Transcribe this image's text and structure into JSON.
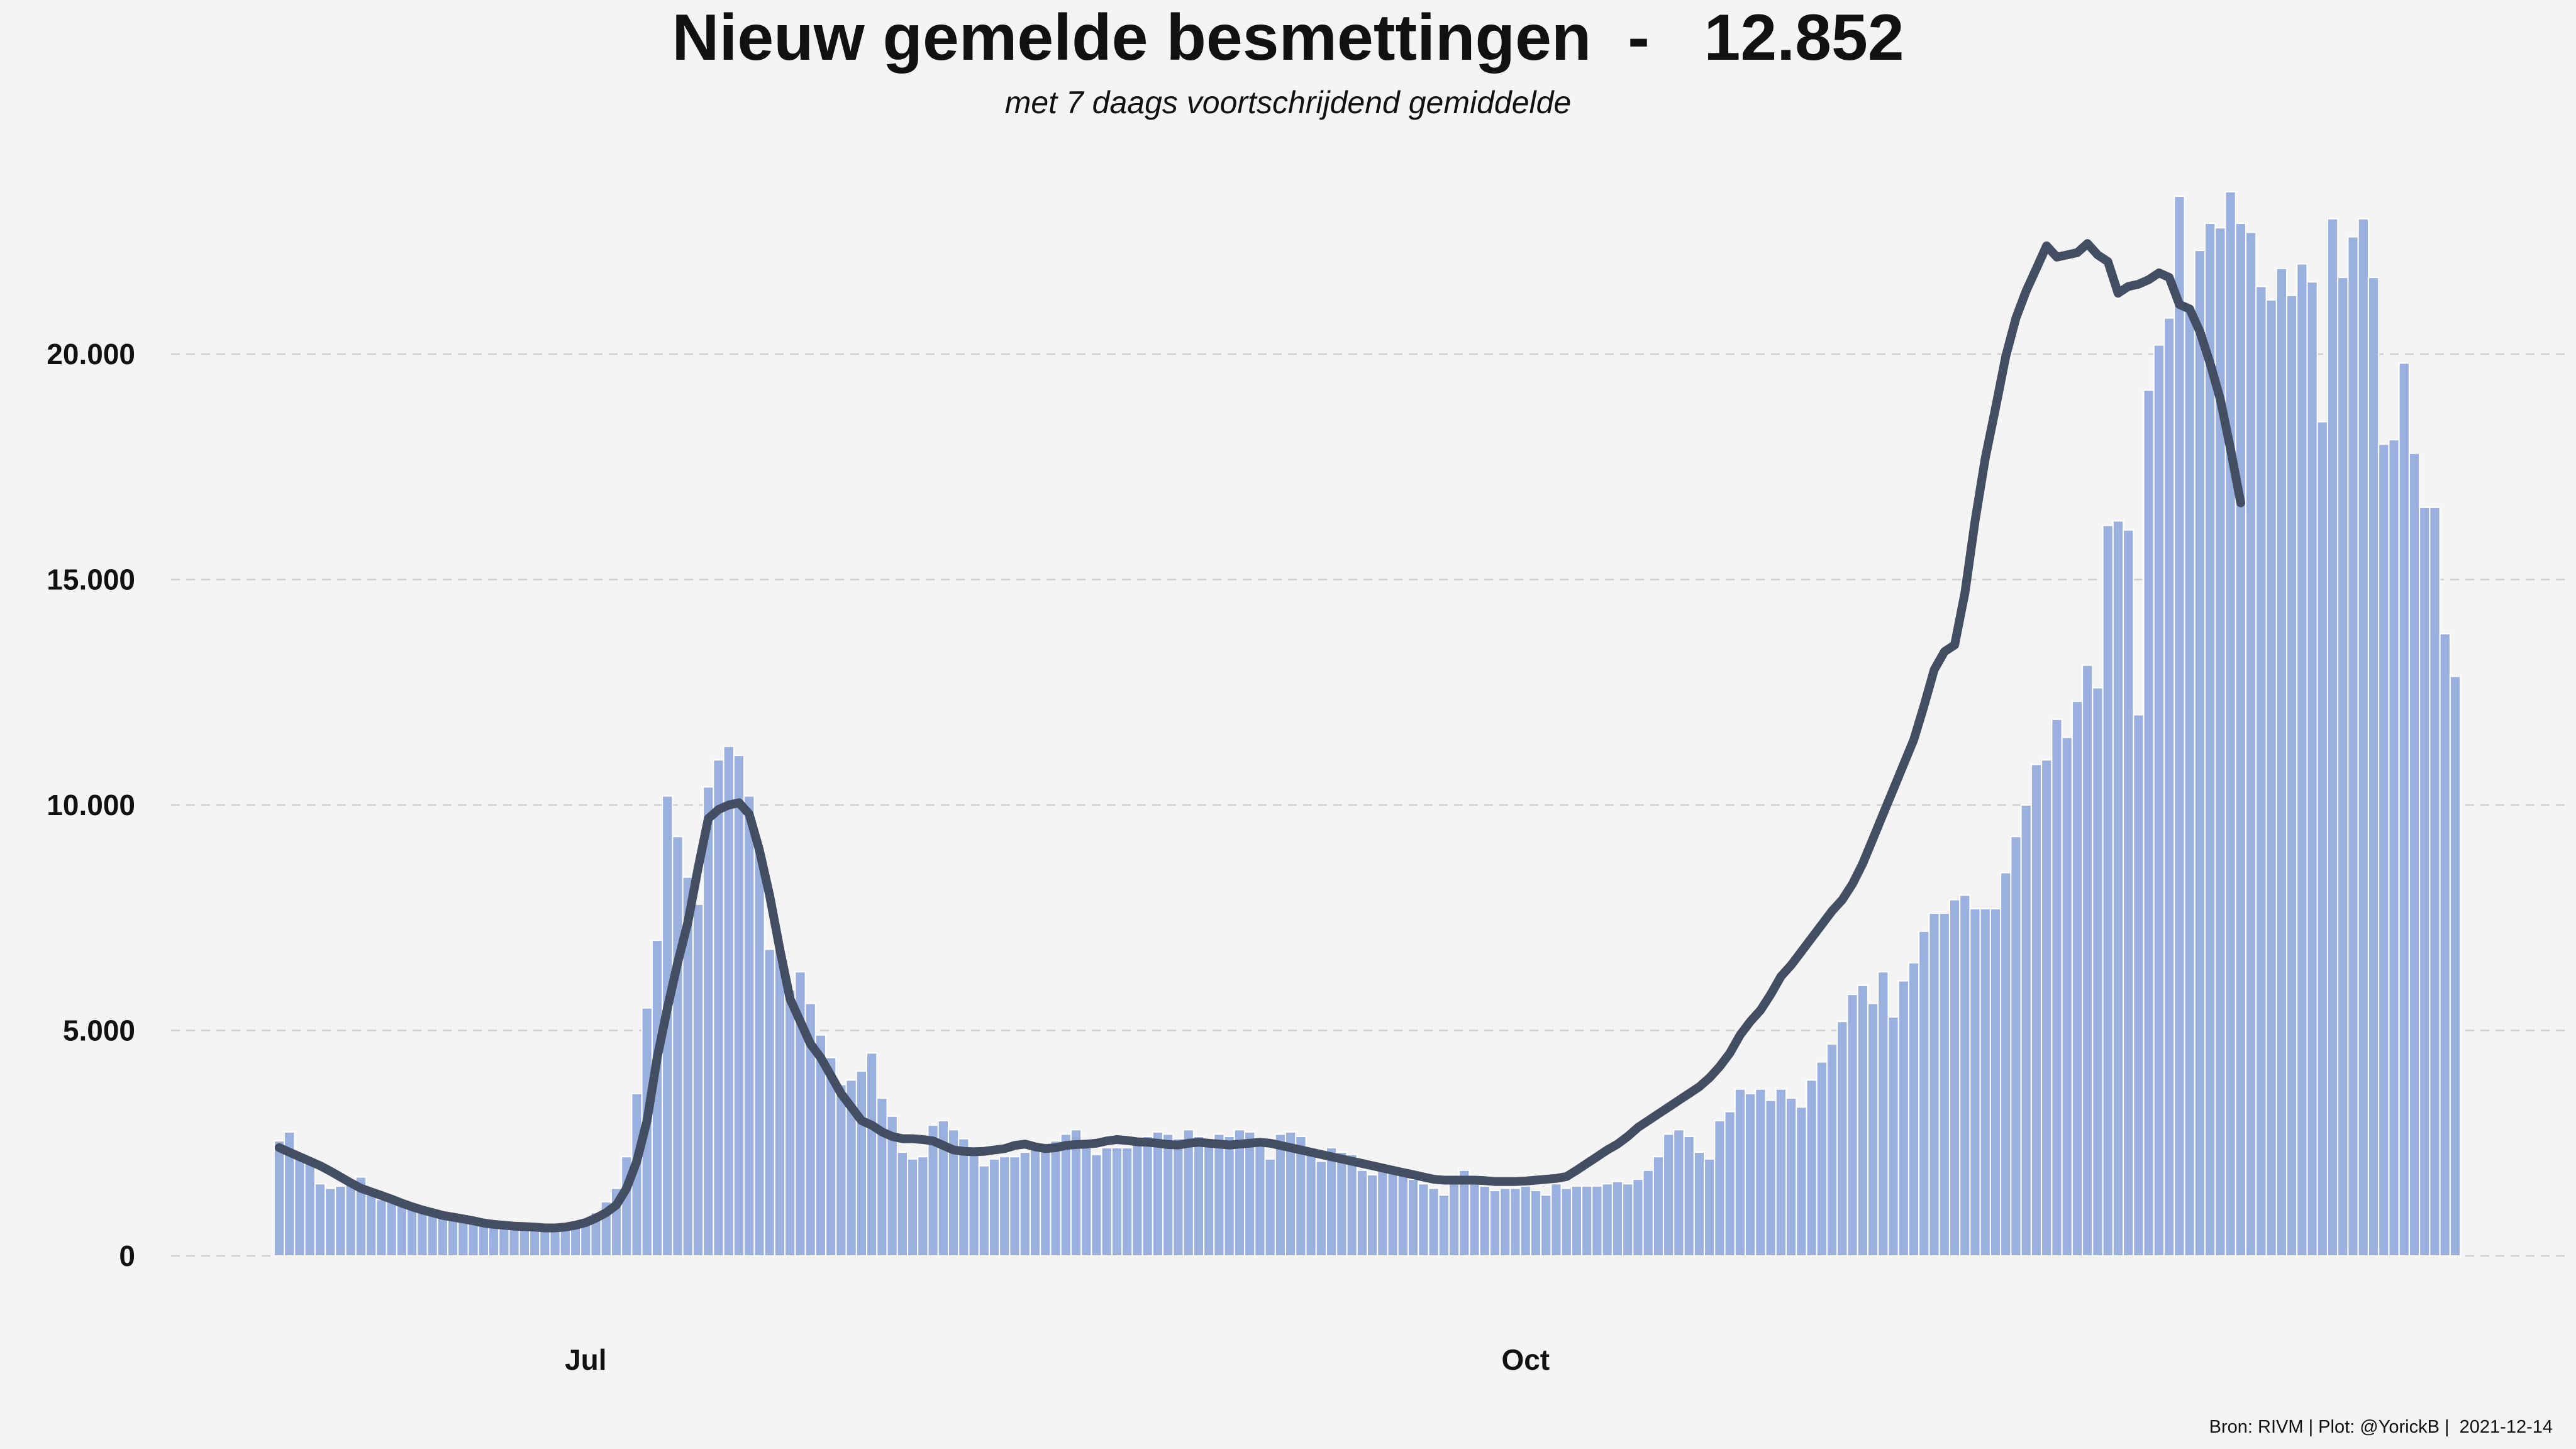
{
  "title": "Nieuw gemelde besmettingen  -   12.852",
  "subtitle": "met 7 daags voortschrijdend gemiddelde",
  "caption": "Bron: RIVM | Plot: @YorickB |  2021-12-14",
  "colors": {
    "bars": "#9ab1e0",
    "bar_stroke": "#ffffff",
    "line": "#434e63",
    "grid": "#cfcfcf",
    "background": "#f4f4f4"
  },
  "chart_data": {
    "type": "bar",
    "x_start": "2021-06-01",
    "x_end": "2021-12-13",
    "x_ticks": [
      {
        "date": "2021-07-01",
        "label": "Jul"
      },
      {
        "date": "2021-10-01",
        "label": "Oct"
      }
    ],
    "ylim": [
      0,
      24000
    ],
    "yticks": [
      0,
      5000,
      10000,
      15000,
      20000
    ],
    "ytick_labels": [
      "0",
      "5.000",
      "10.000",
      "15.000",
      "20.000"
    ],
    "grid": "horizontal dashed",
    "series": [
      {
        "type": "bar",
        "values": [
          2550,
          2750,
          2200,
          2050,
          1600,
          1500,
          1550,
          1650,
          1750,
          1350,
          1250,
          1250,
          1150,
          1050,
          1000,
          900,
          870,
          880,
          800,
          740,
          700,
          680,
          670,
          630,
          600,
          580,
          560,
          590,
          640,
          700,
          800,
          960,
          1200,
          1500,
          2200,
          3600,
          5500,
          7000,
          10200,
          9300,
          8400,
          7800,
          10400,
          11000,
          11300,
          11100,
          10200,
          9000,
          6800,
          6800,
          5900,
          6300,
          5600,
          4900,
          4400,
          3800,
          3900,
          4100,
          4500,
          3500,
          3100,
          2300,
          2150,
          2200,
          2900,
          3000,
          2800,
          2600,
          2300,
          2000,
          2150,
          2200,
          2200,
          2300,
          2400,
          2500,
          2550,
          2700,
          2800,
          2400,
          2250,
          2400,
          2400,
          2400,
          2600,
          2650,
          2750,
          2700,
          2600,
          2800,
          2650,
          2500,
          2700,
          2650,
          2800,
          2750,
          2600,
          2150,
          2700,
          2750,
          2650,
          2300,
          2100,
          2400,
          2300,
          2250,
          1900,
          1800,
          1900,
          1900,
          1850,
          1700,
          1600,
          1500,
          1350,
          1600,
          1900,
          1600,
          1550,
          1450,
          1500,
          1500,
          1550,
          1450,
          1350,
          1600,
          1500,
          1550,
          1550,
          1550,
          1600,
          1650,
          1600,
          1700,
          1900,
          2200,
          2700,
          2800,
          2650,
          2300,
          2150,
          3000,
          3200,
          3700,
          3600,
          3700,
          3450,
          3700,
          3500,
          3300,
          3900,
          4300,
          4700,
          5200,
          5800,
          6000,
          5600,
          6300,
          5300,
          6100,
          6500,
          7200,
          7600,
          7600,
          7900,
          8000,
          7700,
          7700,
          7700,
          8500,
          9300,
          10000,
          10900,
          11000,
          11900,
          11500,
          12300,
          13100,
          12600,
          16200,
          16300,
          16100,
          12000,
          19200,
          20200,
          20800,
          23500,
          21000,
          22300,
          22900,
          22800,
          23600,
          22900,
          22700,
          21500,
          21200,
          21900,
          21300,
          22000,
          21600,
          18500,
          23000,
          21700,
          22600,
          23000,
          21700,
          18000,
          18100,
          19800,
          17800,
          16600,
          16600,
          13800,
          12852
        ]
      },
      {
        "type": "line",
        "name": "7 daags voortschrijdend gemiddelde",
        "points": [
          [
            0,
            2400
          ],
          [
            1,
            2300
          ],
          [
            2,
            2200
          ],
          [
            3,
            2100
          ],
          [
            4,
            2000
          ],
          [
            5,
            1880
          ],
          [
            6,
            1750
          ],
          [
            7,
            1620
          ],
          [
            8,
            1500
          ],
          [
            9,
            1420
          ],
          [
            10,
            1340
          ],
          [
            11,
            1260
          ],
          [
            12,
            1170
          ],
          [
            13,
            1090
          ],
          [
            14,
            1020
          ],
          [
            15,
            960
          ],
          [
            16,
            900
          ],
          [
            17,
            860
          ],
          [
            18,
            820
          ],
          [
            19,
            780
          ],
          [
            20,
            730
          ],
          [
            21,
            700
          ],
          [
            22,
            680
          ],
          [
            23,
            660
          ],
          [
            24,
            650
          ],
          [
            25,
            640
          ],
          [
            26,
            620
          ],
          [
            27,
            620
          ],
          [
            28,
            640
          ],
          [
            29,
            680
          ],
          [
            30,
            740
          ],
          [
            31,
            840
          ],
          [
            32,
            960
          ],
          [
            33,
            1130
          ],
          [
            34,
            1500
          ],
          [
            35,
            2100
          ],
          [
            36,
            3000
          ],
          [
            37,
            4400
          ],
          [
            38,
            5500
          ],
          [
            39,
            6500
          ],
          [
            40,
            7400
          ],
          [
            41,
            8600
          ],
          [
            42,
            9700
          ],
          [
            43,
            9900
          ],
          [
            44,
            10000
          ],
          [
            45,
            10050
          ],
          [
            46,
            9800
          ],
          [
            47,
            9000
          ],
          [
            48,
            8000
          ],
          [
            49,
            6800
          ],
          [
            50,
            5700
          ],
          [
            51,
            5200
          ],
          [
            52,
            4700
          ],
          [
            53,
            4400
          ],
          [
            54,
            4000
          ],
          [
            55,
            3600
          ],
          [
            56,
            3300
          ],
          [
            57,
            3000
          ],
          [
            58,
            2900
          ],
          [
            59,
            2750
          ],
          [
            60,
            2650
          ],
          [
            61,
            2600
          ],
          [
            62,
            2600
          ],
          [
            63,
            2580
          ],
          [
            64,
            2550
          ],
          [
            65,
            2450
          ],
          [
            66,
            2350
          ],
          [
            67,
            2320
          ],
          [
            68,
            2310
          ],
          [
            69,
            2320
          ],
          [
            70,
            2350
          ],
          [
            71,
            2380
          ],
          [
            72,
            2450
          ],
          [
            73,
            2480
          ],
          [
            74,
            2420
          ],
          [
            75,
            2380
          ],
          [
            76,
            2400
          ],
          [
            77,
            2450
          ],
          [
            78,
            2470
          ],
          [
            79,
            2480
          ],
          [
            80,
            2500
          ],
          [
            81,
            2550
          ],
          [
            82,
            2580
          ],
          [
            83,
            2560
          ],
          [
            84,
            2530
          ],
          [
            85,
            2520
          ],
          [
            86,
            2500
          ],
          [
            87,
            2470
          ],
          [
            88,
            2460
          ],
          [
            89,
            2500
          ],
          [
            90,
            2520
          ],
          [
            91,
            2500
          ],
          [
            92,
            2480
          ],
          [
            93,
            2460
          ],
          [
            94,
            2480
          ],
          [
            95,
            2500
          ],
          [
            96,
            2520
          ],
          [
            97,
            2500
          ],
          [
            98,
            2450
          ],
          [
            99,
            2400
          ],
          [
            100,
            2350
          ],
          [
            101,
            2300
          ],
          [
            102,
            2250
          ],
          [
            103,
            2200
          ],
          [
            104,
            2150
          ],
          [
            105,
            2100
          ],
          [
            106,
            2050
          ],
          [
            107,
            2000
          ],
          [
            108,
            1950
          ],
          [
            109,
            1900
          ],
          [
            110,
            1850
          ],
          [
            111,
            1800
          ],
          [
            112,
            1750
          ],
          [
            113,
            1700
          ],
          [
            114,
            1680
          ],
          [
            115,
            1680
          ],
          [
            116,
            1680
          ],
          [
            117,
            1680
          ],
          [
            118,
            1670
          ],
          [
            119,
            1650
          ],
          [
            120,
            1650
          ],
          [
            121,
            1650
          ],
          [
            122,
            1660
          ],
          [
            123,
            1680
          ],
          [
            124,
            1700
          ],
          [
            125,
            1720
          ],
          [
            126,
            1760
          ],
          [
            127,
            1900
          ],
          [
            128,
            2050
          ],
          [
            129,
            2200
          ],
          [
            130,
            2350
          ],
          [
            131,
            2480
          ],
          [
            132,
            2650
          ],
          [
            133,
            2850
          ],
          [
            134,
            3000
          ],
          [
            135,
            3150
          ],
          [
            136,
            3300
          ],
          [
            137,
            3450
          ],
          [
            138,
            3600
          ],
          [
            139,
            3750
          ],
          [
            140,
            3950
          ],
          [
            141,
            4200
          ],
          [
            142,
            4500
          ],
          [
            143,
            4900
          ],
          [
            144,
            5200
          ],
          [
            145,
            5450
          ],
          [
            146,
            5800
          ],
          [
            147,
            6200
          ],
          [
            148,
            6450
          ],
          [
            149,
            6750
          ],
          [
            150,
            7050
          ],
          [
            151,
            7350
          ],
          [
            152,
            7650
          ],
          [
            153,
            7900
          ],
          [
            154,
            8250
          ],
          [
            155,
            8700
          ],
          [
            156,
            9250
          ],
          [
            157,
            9800
          ],
          [
            158,
            10350
          ],
          [
            159,
            10900
          ],
          [
            160,
            11450
          ],
          [
            161,
            12200
          ],
          [
            162,
            13000
          ],
          [
            163,
            13400
          ],
          [
            164,
            13550
          ],
          [
            165,
            14700
          ],
          [
            166,
            16300
          ],
          [
            167,
            17700
          ],
          [
            168,
            18800
          ],
          [
            169,
            19950
          ],
          [
            170,
            20800
          ],
          [
            171,
            21400
          ],
          [
            172,
            21900
          ],
          [
            173,
            22400
          ],
          [
            174,
            22150
          ],
          [
            175,
            22200
          ],
          [
            176,
            22250
          ],
          [
            177,
            22450
          ],
          [
            178,
            22200
          ],
          [
            179,
            22050
          ],
          [
            180,
            21350
          ],
          [
            181,
            21500
          ],
          [
            182,
            21550
          ],
          [
            183,
            21650
          ],
          [
            184,
            21800
          ],
          [
            185,
            21700
          ],
          [
            186,
            21100
          ],
          [
            187,
            21000
          ],
          [
            188,
            20500
          ],
          [
            189,
            19800
          ],
          [
            190,
            19000
          ],
          [
            191,
            17900
          ],
          [
            192,
            16700
          ]
        ]
      }
    ]
  }
}
